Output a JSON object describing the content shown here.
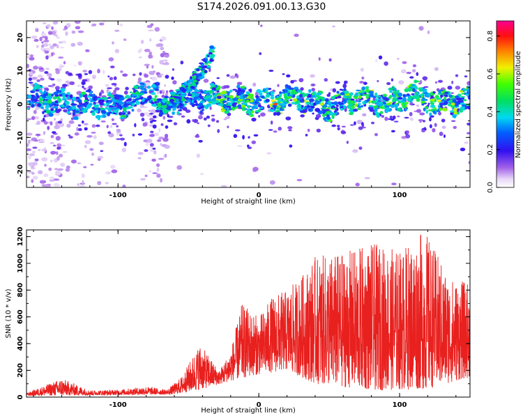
{
  "title": "S174.2026.091.00.13.G30",
  "chart_data": [
    {
      "type": "heatmap",
      "title": "S174.2026.091.00.13.G30",
      "xlabel": "Height of straight line (km)",
      "ylabel": "Frequency (Hz)",
      "xlim": [
        -165,
        150
      ],
      "ylim": [
        -25,
        25
      ],
      "x_ticks": [
        -100,
        0,
        100
      ],
      "y_ticks": [
        20,
        10,
        0,
        -10,
        -20
      ],
      "colorbar": {
        "label": "Normalized spectral amplitude",
        "range": [
          0,
          0.88
        ],
        "ticks": [
          0.0,
          0.2,
          0.4,
          0.6,
          0.8
        ],
        "colormap": "rainbow (white-violet-blue-cyan-green-yellow-red-magenta)"
      },
      "ridge": {
        "points": [
          {
            "x": -160,
            "y": 2
          },
          {
            "x": -140,
            "y": 0
          },
          {
            "x": -120,
            "y": 0
          },
          {
            "x": -100,
            "y": -1
          },
          {
            "x": -85,
            "y": 2
          },
          {
            "x": -70,
            "y": 4
          },
          {
            "x": -68,
            "y": -1
          },
          {
            "x": -55,
            "y": 2
          },
          {
            "x": -45,
            "y": 6
          },
          {
            "x": -38,
            "y": 12
          },
          {
            "x": -33,
            "y": 16
          },
          {
            "x": -40,
            "y": 0
          },
          {
            "x": -30,
            "y": 2
          },
          {
            "x": -10,
            "y": 1
          },
          {
            "x": 10,
            "y": 1
          },
          {
            "x": 30,
            "y": 2
          },
          {
            "x": 50,
            "y": -1
          },
          {
            "x": 70,
            "y": 2
          },
          {
            "x": 90,
            "y": 0
          },
          {
            "x": 110,
            "y": 3
          },
          {
            "x": 130,
            "y": 0
          },
          {
            "x": 148,
            "y": 1
          }
        ],
        "peak_amplitude": 0.88,
        "peak_at": {
          "x": 12,
          "y": 0
        }
      }
    },
    {
      "type": "line",
      "xlabel": "Height of straight line (km)",
      "ylabel": "SNR (10 * v/v)",
      "xlim": [
        -165,
        150
      ],
      "ylim": [
        0,
        1250
      ],
      "x_ticks": [
        -100,
        0,
        100
      ],
      "y_ticks": [
        0,
        200,
        400,
        600,
        800,
        1000,
        1200
      ],
      "color": "#e8201e",
      "envelope": [
        {
          "x": -165,
          "y": 30
        },
        {
          "x": -140,
          "y": 140
        },
        {
          "x": -120,
          "y": 50
        },
        {
          "x": -100,
          "y": 55
        },
        {
          "x": -80,
          "y": 80
        },
        {
          "x": -65,
          "y": 55
        },
        {
          "x": -55,
          "y": 150
        },
        {
          "x": -42,
          "y": 400
        },
        {
          "x": -35,
          "y": 300
        },
        {
          "x": -28,
          "y": 200
        },
        {
          "x": -20,
          "y": 350
        },
        {
          "x": -12,
          "y": 700
        },
        {
          "x": 0,
          "y": 600
        },
        {
          "x": 10,
          "y": 760
        },
        {
          "x": 20,
          "y": 800
        },
        {
          "x": 30,
          "y": 900
        },
        {
          "x": 40,
          "y": 1050
        },
        {
          "x": 60,
          "y": 1080
        },
        {
          "x": 80,
          "y": 1150
        },
        {
          "x": 100,
          "y": 1100
        },
        {
          "x": 118,
          "y": 1250
        },
        {
          "x": 135,
          "y": 900
        },
        {
          "x": 150,
          "y": 850
        }
      ],
      "baseline": [
        {
          "x": -165,
          "y": 10
        },
        {
          "x": -60,
          "y": 20
        },
        {
          "x": -40,
          "y": 60
        },
        {
          "x": -20,
          "y": 120
        },
        {
          "x": 0,
          "y": 170
        },
        {
          "x": 20,
          "y": 200
        },
        {
          "x": 40,
          "y": 100
        },
        {
          "x": 80,
          "y": 50
        },
        {
          "x": 120,
          "y": 60
        },
        {
          "x": 150,
          "y": 150
        }
      ]
    }
  ]
}
